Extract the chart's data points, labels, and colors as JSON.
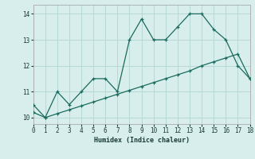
{
  "xlabel": "Humidex (Indice chaleur)",
  "background_color": "#d7eeec",
  "line_color": "#1a6b5e",
  "grid_color": "#b8d8d5",
  "line1_x": [
    0,
    1,
    2,
    3,
    4,
    5,
    6,
    7,
    8,
    9,
    10,
    11,
    12,
    13,
    14,
    15,
    16,
    17,
    18
  ],
  "line1_y": [
    10.5,
    10.0,
    11.0,
    10.5,
    11.0,
    11.5,
    11.5,
    11.0,
    13.0,
    13.8,
    13.0,
    13.0,
    13.5,
    14.0,
    14.0,
    13.4,
    13.0,
    12.0,
    11.5
  ],
  "line2_x": [
    0,
    1,
    2,
    3,
    4,
    5,
    6,
    7,
    8,
    9,
    10,
    11,
    12,
    13,
    14,
    15,
    16,
    17,
    18
  ],
  "line2_y": [
    10.2,
    10.0,
    10.15,
    10.3,
    10.45,
    10.6,
    10.75,
    10.9,
    11.05,
    11.2,
    11.35,
    11.5,
    11.65,
    11.8,
    12.0,
    12.15,
    12.3,
    12.45,
    11.5
  ],
  "xlim": [
    0,
    18
  ],
  "ylim": [
    9.75,
    14.35
  ],
  "yticks": [
    10,
    11,
    12,
    13,
    14
  ],
  "xticks": [
    0,
    1,
    2,
    3,
    4,
    5,
    6,
    7,
    8,
    9,
    10,
    11,
    12,
    13,
    14,
    15,
    16,
    17,
    18
  ]
}
